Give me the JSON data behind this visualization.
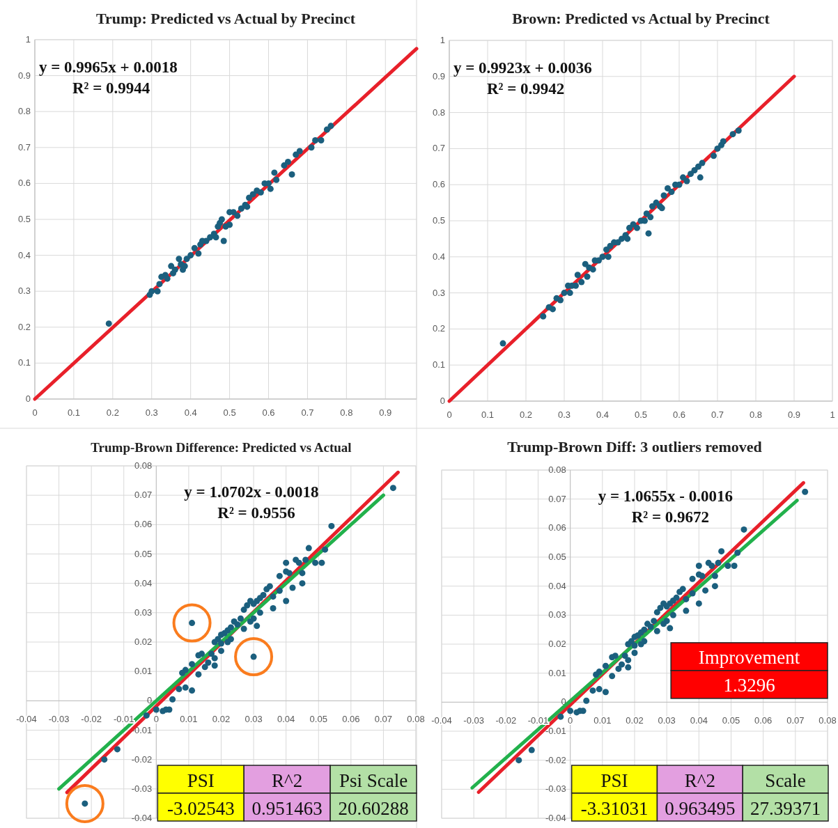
{
  "chart_data": [
    {
      "type": "scatter",
      "title": "Trump: Predicted vs Actual by Precinct",
      "xlim": [
        0,
        0.98
      ],
      "ylim": [
        0,
        1
      ],
      "xticks": [
        0,
        0.1,
        0.2,
        0.3,
        0.4,
        0.5,
        0.6,
        0.7,
        0.8,
        0.9
      ],
      "yticks": [
        0,
        0.1,
        0.2,
        0.3,
        0.4,
        0.5,
        0.6,
        0.7,
        0.8,
        0.9,
        1
      ],
      "grid": true,
      "annotations": [
        "y = 0.9965x + 0.0018",
        "R² = 0.9944"
      ],
      "series": [
        {
          "type": "scatter",
          "marker": "circle",
          "color": "#1b5f7e",
          "x": [
            0.19,
            0.295,
            0.3,
            0.315,
            0.32,
            0.325,
            0.335,
            0.34,
            0.35,
            0.355,
            0.36,
            0.37,
            0.375,
            0.38,
            0.385,
            0.39,
            0.4,
            0.41,
            0.42,
            0.425,
            0.43,
            0.44,
            0.45,
            0.46,
            0.465,
            0.47,
            0.475,
            0.48,
            0.485,
            0.49,
            0.5,
            0.5,
            0.51,
            0.52,
            0.53,
            0.54,
            0.545,
            0.55,
            0.56,
            0.57,
            0.58,
            0.59,
            0.6,
            0.605,
            0.615,
            0.62,
            0.64,
            0.65,
            0.66,
            0.67,
            0.68,
            0.71,
            0.72,
            0.735,
            0.75,
            0.76
          ],
          "values": [
            0.21,
            0.29,
            0.3,
            0.3,
            0.32,
            0.34,
            0.345,
            0.335,
            0.37,
            0.35,
            0.36,
            0.39,
            0.375,
            0.36,
            0.37,
            0.39,
            0.4,
            0.42,
            0.405,
            0.43,
            0.44,
            0.44,
            0.45,
            0.46,
            0.45,
            0.48,
            0.49,
            0.5,
            0.44,
            0.48,
            0.485,
            0.52,
            0.52,
            0.51,
            0.53,
            0.54,
            0.535,
            0.56,
            0.57,
            0.58,
            0.575,
            0.6,
            0.6,
            0.585,
            0.63,
            0.61,
            0.65,
            0.66,
            0.625,
            0.68,
            0.69,
            0.7,
            0.72,
            0.72,
            0.75,
            0.76
          ]
        },
        {
          "type": "line",
          "color": "#e8202a",
          "x": [
            0,
            0.98
          ],
          "values": [
            0,
            0.975
          ]
        }
      ]
    },
    {
      "type": "scatter",
      "title": "Brown: Predicted vs Actual by Precinct",
      "xlim": [
        0,
        1
      ],
      "ylim": [
        0,
        1
      ],
      "xticks": [
        0,
        0.1,
        0.2,
        0.3,
        0.4,
        0.5,
        0.6,
        0.7,
        0.8,
        0.9,
        1
      ],
      "yticks": [
        0,
        0.1,
        0.2,
        0.3,
        0.4,
        0.5,
        0.6,
        0.7,
        0.8,
        0.9,
        1
      ],
      "grid": true,
      "annotations": [
        "y = 0.9923x + 0.0036",
        "R² = 0.9942"
      ],
      "series": [
        {
          "type": "scatter",
          "marker": "circle",
          "color": "#1b5f7e",
          "x": [
            0.14,
            0.245,
            0.26,
            0.27,
            0.28,
            0.29,
            0.3,
            0.31,
            0.315,
            0.32,
            0.33,
            0.335,
            0.345,
            0.355,
            0.36,
            0.365,
            0.375,
            0.38,
            0.39,
            0.4,
            0.41,
            0.415,
            0.42,
            0.43,
            0.44,
            0.45,
            0.46,
            0.465,
            0.47,
            0.48,
            0.49,
            0.5,
            0.51,
            0.515,
            0.52,
            0.525,
            0.53,
            0.54,
            0.55,
            0.555,
            0.56,
            0.57,
            0.58,
            0.59,
            0.6,
            0.61,
            0.62,
            0.63,
            0.64,
            0.65,
            0.655,
            0.66,
            0.69,
            0.7,
            0.71,
            0.715,
            0.74,
            0.755
          ],
          "values": [
            0.16,
            0.235,
            0.26,
            0.255,
            0.285,
            0.28,
            0.3,
            0.32,
            0.3,
            0.32,
            0.32,
            0.35,
            0.33,
            0.38,
            0.345,
            0.37,
            0.365,
            0.39,
            0.39,
            0.4,
            0.42,
            0.4,
            0.43,
            0.44,
            0.44,
            0.45,
            0.46,
            0.45,
            0.48,
            0.49,
            0.48,
            0.5,
            0.5,
            0.52,
            0.465,
            0.51,
            0.54,
            0.55,
            0.54,
            0.535,
            0.57,
            0.59,
            0.58,
            0.6,
            0.6,
            0.62,
            0.61,
            0.63,
            0.64,
            0.65,
            0.62,
            0.66,
            0.68,
            0.7,
            0.71,
            0.72,
            0.74,
            0.75
          ]
        },
        {
          "type": "line",
          "color": "#e8202a",
          "x": [
            0,
            0.9
          ],
          "values": [
            0,
            0.9
          ]
        }
      ]
    },
    {
      "type": "scatter",
      "title": "Trump-Brown Difference: Predicted vs Actual",
      "xlim": [
        -0.04,
        0.08
      ],
      "ylim": [
        -0.04,
        0.08
      ],
      "xticks": [
        -0.04,
        -0.03,
        -0.02,
        -0.01,
        0,
        0.01,
        0.02,
        0.03,
        0.04,
        0.05,
        0.06,
        0.07,
        0.08
      ],
      "yticks": [
        -0.04,
        -0.03,
        -0.02,
        -0.01,
        0,
        0.01,
        0.02,
        0.03,
        0.04,
        0.05,
        0.06,
        0.07,
        0.08
      ],
      "grid": true,
      "annotations": [
        "y = 1.0702x - 0.0018",
        "R² = 0.9556",
        "PSI",
        "R^2",
        "Psi Scale",
        "-3.02543",
        "0.951463",
        "20.60288"
      ],
      "series": [
        {
          "type": "scatter",
          "marker": "circle",
          "color": "#1b5f7e",
          "x": [
            0.073,
            0.054,
            0.047,
            0.052,
            0.049,
            0.051,
            0.04,
            0.043,
            0.044,
            0.045,
            0.046,
            0.04,
            0.038,
            0.041,
            0.042,
            0.045,
            0.04,
            0.038,
            0.036,
            0.035,
            0.034,
            0.033,
            0.032,
            0.031,
            0.03,
            0.029,
            0.028,
            0.027,
            0.032,
            0.036,
            0.03,
            0.031,
            0.029,
            0.026,
            0.025,
            0.024,
            0.027,
            0.023,
            0.022,
            0.021,
            0.022,
            0.023,
            0.02,
            0.019,
            0.018,
            0.02,
            0.02,
            0.017,
            0.018,
            0.018,
            0.016,
            0.015,
            0.014,
            0.013,
            0.013,
            0.011,
            0.009,
            0.008,
            0.009,
            0.007,
            0.011,
            0.005,
            0.004,
            0.003,
            0.002,
            0.0,
            -0.003,
            -0.012,
            -0.016
          ],
          "values": [
            0.0725,
            0.0595,
            0.052,
            0.0515,
            0.047,
            0.047,
            0.047,
            0.048,
            0.047,
            0.0435,
            0.048,
            0.044,
            0.0425,
            0.0435,
            0.0385,
            0.04,
            0.034,
            0.0375,
            0.0355,
            0.039,
            0.038,
            0.036,
            0.035,
            0.034,
            0.033,
            0.034,
            0.0325,
            0.031,
            0.03,
            0.0315,
            0.028,
            0.0255,
            0.027,
            0.028,
            0.026,
            0.027,
            0.0245,
            0.025,
            0.024,
            0.023,
            0.02,
            0.021,
            0.0225,
            0.021,
            0.02,
            0.0195,
            0.017,
            0.016,
            0.0145,
            0.012,
            0.013,
            0.0115,
            0.016,
            0.0155,
            0.009,
            0.0125,
            0.0105,
            0.0095,
            0.0045,
            0.004,
            0.0035,
            0.0005,
            -0.003,
            -0.003,
            -0.0035,
            -0.003,
            -0.005,
            -0.0165,
            -0.02
          ]
        },
        {
          "type": "scatter",
          "marker": "circle",
          "color": "#1b5f7e",
          "x": [
            0.011,
            0.03,
            -0.022
          ],
          "values": [
            0.0265,
            0.015,
            -0.035
          ]
        },
        {
          "type": "line",
          "color": "#e8202a",
          "x": [
            -0.0275,
            0.0745
          ],
          "values": [
            -0.0312,
            0.0778
          ]
        },
        {
          "type": "line",
          "color": "#22b14c",
          "x": [
            -0.03,
            0.07
          ],
          "values": [
            -0.03,
            0.07
          ]
        }
      ]
    },
    {
      "type": "scatter",
      "title": "Trump-Brown Diff: 3 outliers removed",
      "xlim": [
        -0.04,
        0.08
      ],
      "ylim": [
        -0.04,
        0.08
      ],
      "xticks": [
        -0.04,
        -0.03,
        -0.02,
        -0.01,
        0,
        0.01,
        0.02,
        0.03,
        0.04,
        0.05,
        0.06,
        0.07,
        0.08
      ],
      "yticks": [
        -0.04,
        -0.03,
        -0.02,
        -0.01,
        0,
        0.01,
        0.02,
        0.03,
        0.04,
        0.05,
        0.06,
        0.07,
        0.08
      ],
      "grid": true,
      "annotations": [
        "y = 1.0655x - 0.0016",
        "R² = 0.9672",
        "PSI",
        "R^2",
        "Scale",
        "-3.31031",
        "0.963495",
        "27.39371",
        "Improvement",
        "1.3296"
      ],
      "series": [
        {
          "type": "scatter",
          "marker": "circle",
          "color": "#1b5f7e",
          "x": [
            0.073,
            0.054,
            0.047,
            0.052,
            0.049,
            0.051,
            0.04,
            0.043,
            0.044,
            0.045,
            0.046,
            0.04,
            0.038,
            0.041,
            0.042,
            0.045,
            0.04,
            0.038,
            0.036,
            0.035,
            0.034,
            0.033,
            0.032,
            0.031,
            0.03,
            0.029,
            0.028,
            0.027,
            0.032,
            0.036,
            0.03,
            0.031,
            0.029,
            0.026,
            0.025,
            0.024,
            0.027,
            0.023,
            0.022,
            0.021,
            0.022,
            0.023,
            0.02,
            0.019,
            0.018,
            0.02,
            0.02,
            0.017,
            0.018,
            0.018,
            0.016,
            0.015,
            0.014,
            0.013,
            0.013,
            0.011,
            0.009,
            0.008,
            0.009,
            0.007,
            0.011,
            0.005,
            0.004,
            0.003,
            0.002,
            0.0,
            -0.003,
            -0.012,
            -0.016
          ],
          "values": [
            0.0725,
            0.0595,
            0.052,
            0.0515,
            0.047,
            0.047,
            0.047,
            0.048,
            0.047,
            0.0435,
            0.048,
            0.044,
            0.0425,
            0.0435,
            0.0385,
            0.04,
            0.034,
            0.0375,
            0.0355,
            0.039,
            0.038,
            0.036,
            0.035,
            0.034,
            0.033,
            0.034,
            0.0325,
            0.031,
            0.03,
            0.0315,
            0.028,
            0.0255,
            0.027,
            0.028,
            0.026,
            0.027,
            0.0245,
            0.025,
            0.024,
            0.023,
            0.02,
            0.021,
            0.0225,
            0.021,
            0.02,
            0.0195,
            0.017,
            0.016,
            0.0145,
            0.012,
            0.013,
            0.0115,
            0.016,
            0.0155,
            0.009,
            0.0125,
            0.0105,
            0.0095,
            0.0045,
            0.004,
            0.0035,
            0.0005,
            -0.003,
            -0.003,
            -0.0035,
            -0.003,
            -0.005,
            -0.0165,
            -0.02
          ]
        },
        {
          "type": "line",
          "color": "#e8202a",
          "x": [
            -0.0285,
            0.0725
          ],
          "values": [
            -0.031,
            0.0756
          ]
        },
        {
          "type": "line",
          "color": "#22b14c",
          "x": [
            -0.0305,
            0.0705
          ],
          "values": [
            -0.0295,
            0.0695
          ]
        }
      ]
    }
  ]
}
